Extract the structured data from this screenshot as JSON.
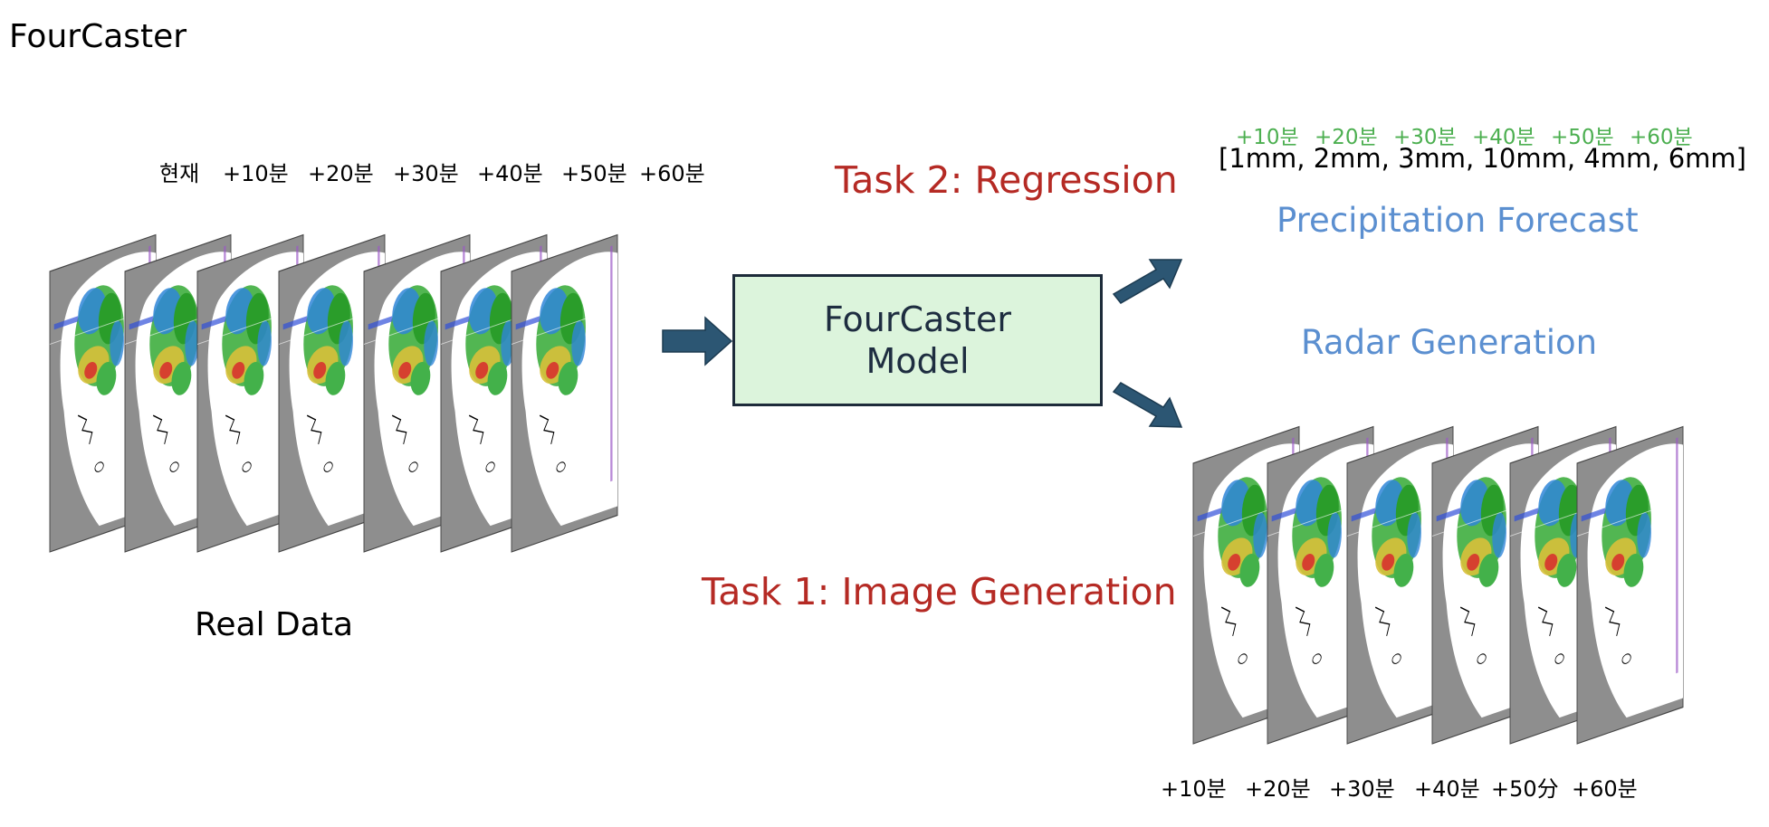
{
  "title": "FourCaster",
  "input_time_labels": [
    "현재",
    "+10분",
    "+20분",
    "+30분",
    "+40분",
    "+50분",
    "+60분"
  ],
  "input_caption": "Real Data",
  "model": {
    "line1": "FourCaster",
    "line2": "Model"
  },
  "task2_label": "Task 2: Regression",
  "task1_label": "Task 1: Image Generation",
  "forecast": {
    "title": "Precipitation Forecast",
    "time_labels": [
      "+10분",
      "+20분",
      "+30분",
      "+40분",
      "+50분",
      "+60분"
    ],
    "values_text": "[1mm, 2mm, 3mm, 10mm, 4mm, 6mm]"
  },
  "generation": {
    "title": "Radar Generation",
    "time_labels": [
      "+10분",
      "+20분",
      "+30분",
      "+40분",
      "+50分",
      "+60분"
    ]
  },
  "colors": {
    "task_label": "#b52a24",
    "output_title": "#5b8fd0",
    "forecast_times": "#4caf50",
    "arrow": "#2c5673",
    "model_fill": "#dcf4dc"
  }
}
